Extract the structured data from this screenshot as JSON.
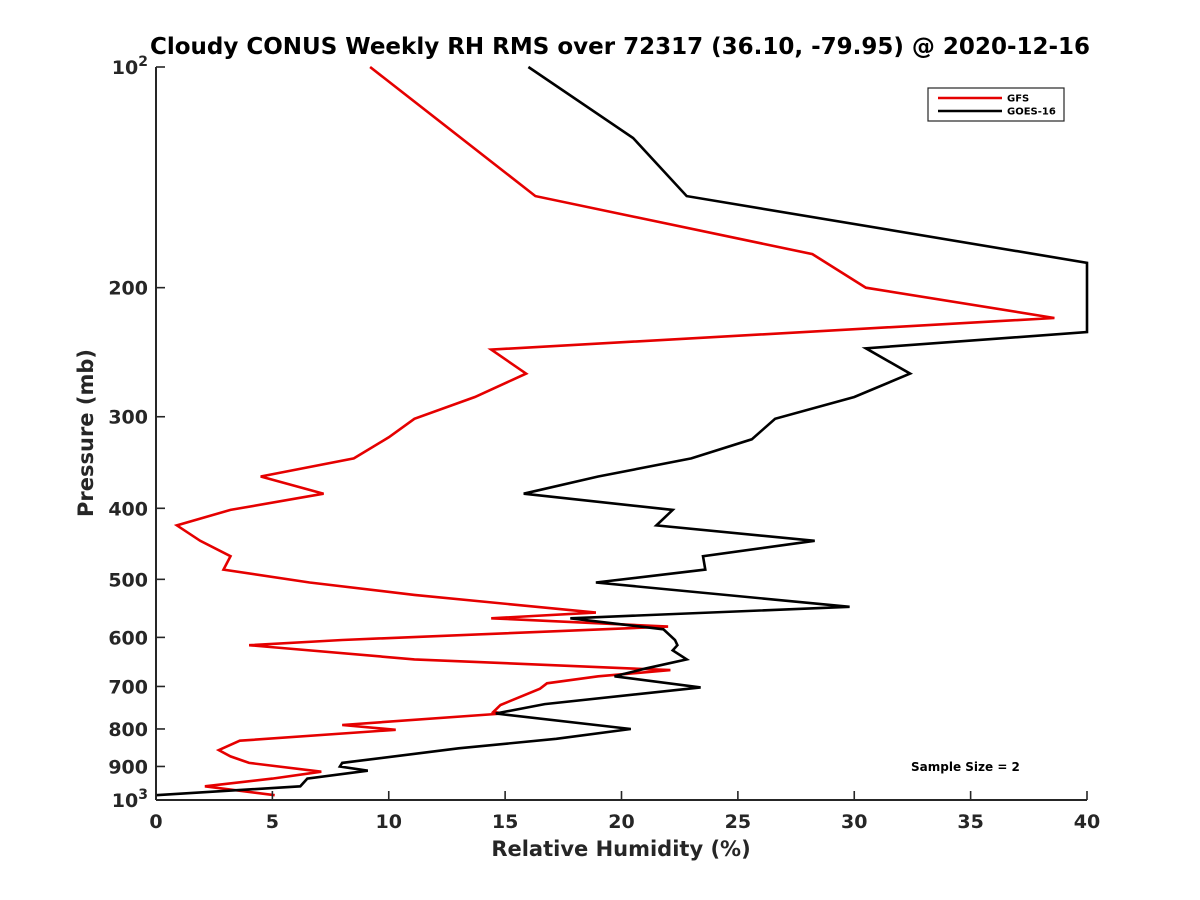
{
  "chart_data": {
    "type": "line",
    "title": "Cloudy CONUS Weekly RH RMS over 72317 (36.10, -79.95) @ 2020-12-16",
    "xlabel": "Relative Humidity (%)",
    "ylabel": "Pressure (mb)",
    "xlim": [
      0,
      40
    ],
    "ylim": [
      100,
      1000
    ],
    "y_scale": "log",
    "y_reversed": true,
    "grid": false,
    "legend_position": "top-right",
    "x_ticks": [
      "0",
      "5",
      "10",
      "15",
      "20",
      "25",
      "30",
      "35",
      "40"
    ],
    "x_tick_values": [
      0,
      5,
      10,
      15,
      20,
      25,
      30,
      35,
      40
    ],
    "y_ticks": [
      {
        "value": 100,
        "label": "10",
        "sup": "2"
      },
      {
        "value": 200,
        "label": "200",
        "sup": ""
      },
      {
        "value": 300,
        "label": "300",
        "sup": ""
      },
      {
        "value": 400,
        "label": "400",
        "sup": ""
      },
      {
        "value": 500,
        "label": "500",
        "sup": ""
      },
      {
        "value": 600,
        "label": "600",
        "sup": ""
      },
      {
        "value": 700,
        "label": "700",
        "sup": ""
      },
      {
        "value": 800,
        "label": "800",
        "sup": ""
      },
      {
        "value": 900,
        "label": "900",
        "sup": ""
      },
      {
        "value": 1000,
        "label": "10",
        "sup": "3"
      }
    ],
    "annotation": "Sample Size = 2",
    "series": [
      {
        "name": "GFS",
        "color": "#e50000",
        "points": [
          [
            9.2,
            100
          ],
          [
            16.3,
            150
          ],
          [
            28.2,
            180
          ],
          [
            30.5,
            200
          ],
          [
            38.6,
            220
          ],
          [
            14.4,
            243
          ],
          [
            15.9,
            262
          ],
          [
            13.7,
            282
          ],
          [
            11.1,
            302
          ],
          [
            10.0,
            320
          ],
          [
            8.5,
            342
          ],
          [
            4.5,
            362
          ],
          [
            7.2,
            382
          ],
          [
            3.2,
            402
          ],
          [
            0.9,
            422
          ],
          [
            1.9,
            443
          ],
          [
            3.2,
            465
          ],
          [
            2.9,
            485
          ],
          [
            6.6,
            505
          ],
          [
            11.1,
            525
          ],
          [
            18.9,
            555
          ],
          [
            14.4,
            565
          ],
          [
            22.0,
            580
          ],
          [
            8.0,
            605
          ],
          [
            4.0,
            615
          ],
          [
            11.1,
            643
          ],
          [
            22.1,
            665
          ],
          [
            19.0,
            678
          ],
          [
            16.8,
            693
          ],
          [
            16.5,
            705
          ],
          [
            14.8,
            742
          ],
          [
            14.5,
            758
          ],
          [
            14.9,
            762
          ],
          [
            8.0,
            790
          ],
          [
            10.3,
            802
          ],
          [
            3.6,
            830
          ],
          [
            2.7,
            855
          ],
          [
            3.2,
            872
          ],
          [
            4.0,
            890
          ],
          [
            7.1,
            915
          ],
          [
            5.0,
            935
          ],
          [
            2.1,
            958
          ],
          [
            5.1,
            985
          ]
        ]
      },
      {
        "name": "GOES-16",
        "color": "#000000",
        "points": [
          [
            16.0,
            100
          ],
          [
            20.5,
            125
          ],
          [
            22.8,
            150
          ],
          [
            40.0,
            185
          ],
          [
            40.0,
            230
          ],
          [
            30.5,
            242
          ],
          [
            32.4,
            262
          ],
          [
            30.0,
            282
          ],
          [
            26.6,
            302
          ],
          [
            25.6,
            322
          ],
          [
            23.0,
            342
          ],
          [
            19.0,
            362
          ],
          [
            15.8,
            382
          ],
          [
            22.2,
            402
          ],
          [
            21.5,
            422
          ],
          [
            28.3,
            443
          ],
          [
            23.5,
            465
          ],
          [
            23.6,
            485
          ],
          [
            18.9,
            505
          ],
          [
            29.8,
            545
          ],
          [
            17.8,
            565
          ],
          [
            21.8,
            585
          ],
          [
            22.3,
            605
          ],
          [
            22.4,
            615
          ],
          [
            22.2,
            625
          ],
          [
            22.8,
            643
          ],
          [
            21.0,
            662
          ],
          [
            19.7,
            678
          ],
          [
            23.4,
            702
          ],
          [
            16.7,
            740
          ],
          [
            14.6,
            762
          ],
          [
            20.4,
            800
          ],
          [
            17.2,
            825
          ],
          [
            13.0,
            850
          ],
          [
            8.0,
            890
          ],
          [
            7.9,
            900
          ],
          [
            9.1,
            912
          ],
          [
            6.5,
            935
          ],
          [
            6.2,
            958
          ],
          [
            0.0,
            985
          ]
        ]
      }
    ]
  }
}
